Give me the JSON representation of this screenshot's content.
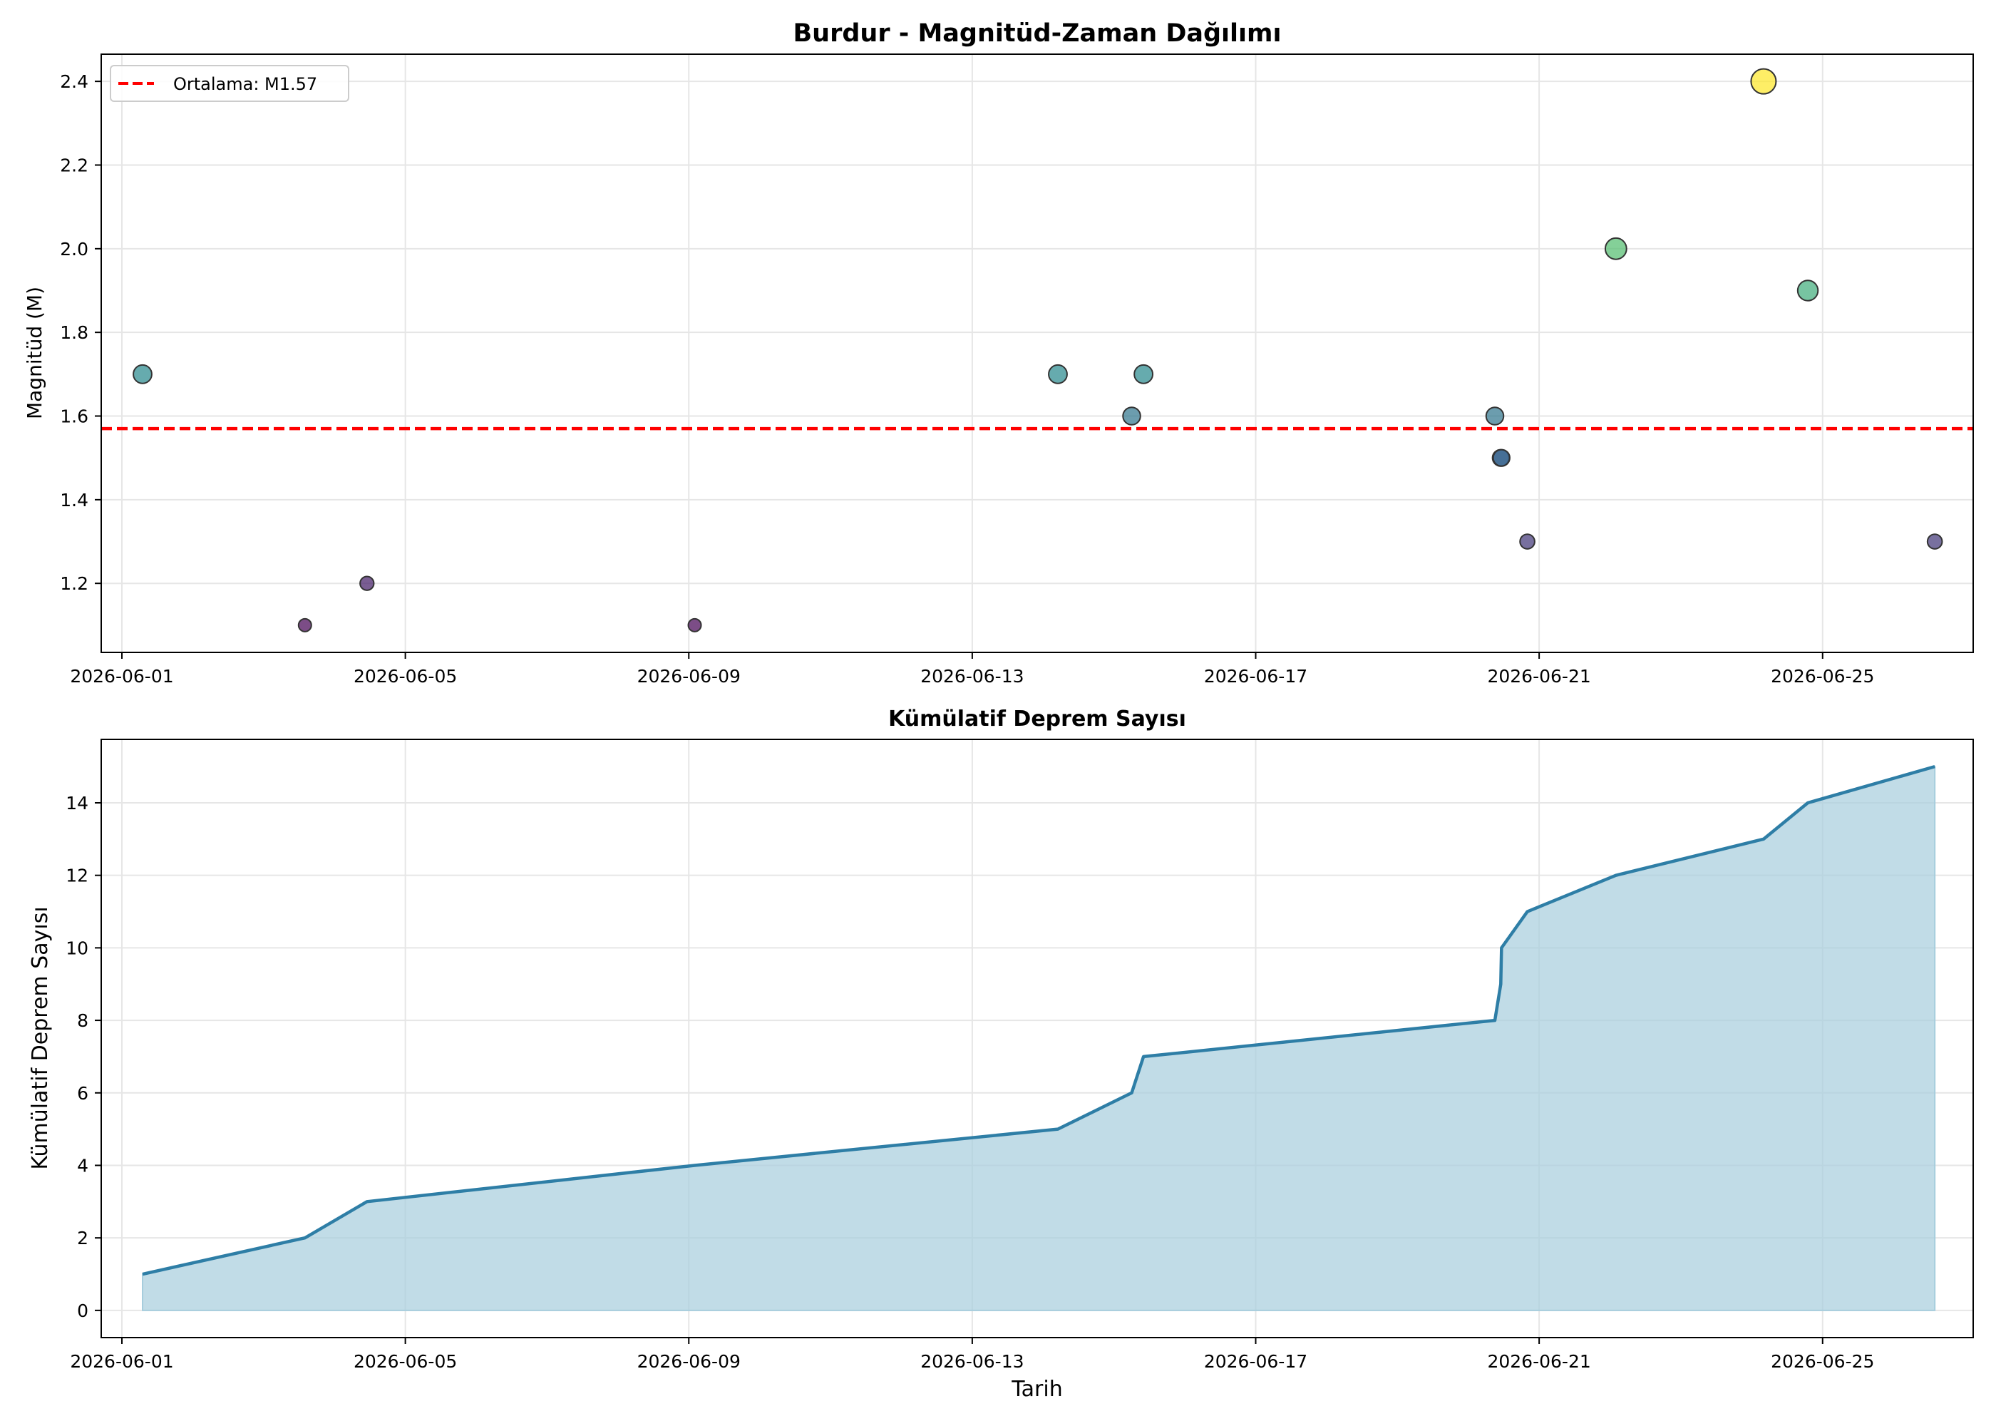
{
  "colors": {
    "mean_line": "#ff0000",
    "cumulative_line": "#2e7ea6",
    "cumulative_fill": "#a6cddd",
    "marker_edge": "#333333",
    "grid": "#e6e6e6",
    "colormap": [
      "#440154",
      "#3b528b",
      "#21918c",
      "#5ec962",
      "#fde725"
    ]
  },
  "chart_data": [
    {
      "type": "scatter",
      "title": "Burdur - Magnitüd-Zaman Dağılımı",
      "xlabel": "",
      "ylabel": "Magnitüd (M)",
      "x_range": [
        "2026-05-31T17:00",
        "2026-06-27T03:00"
      ],
      "ylim": [
        1.035,
        2.465
      ],
      "x_ticks": [
        "2026-06-01",
        "2026-06-05",
        "2026-06-09",
        "2026-06-13",
        "2026-06-17",
        "2026-06-21",
        "2026-06-25"
      ],
      "y_ticks": [
        1.2,
        1.4,
        1.6,
        1.8,
        2.0,
        2.2,
        2.4
      ],
      "y_tick_labels": [
        "1.2",
        "1.4",
        "1.6",
        "1.8",
        "2.0",
        "2.2",
        "2.4"
      ],
      "grid": true,
      "color_range": [
        1.1,
        2.4
      ],
      "points": [
        {
          "t": "2026-06-01T07:00",
          "m": 1.7
        },
        {
          "t": "2026-06-03T14:00",
          "m": 1.1
        },
        {
          "t": "2026-06-04T11:00",
          "m": 1.2
        },
        {
          "t": "2026-06-09T02:00",
          "m": 1.1
        },
        {
          "t": "2026-06-14T05:00",
          "m": 1.7
        },
        {
          "t": "2026-06-15T06:00",
          "m": 1.6
        },
        {
          "t": "2026-06-15T10:00",
          "m": 1.7
        },
        {
          "t": "2026-06-20T09:00",
          "m": 1.6
        },
        {
          "t": "2026-06-20T11:00",
          "m": 1.5
        },
        {
          "t": "2026-06-20T11:15",
          "m": 1.5
        },
        {
          "t": "2026-06-20T20:00",
          "m": 1.3
        },
        {
          "t": "2026-06-22T02:00",
          "m": 2.0
        },
        {
          "t": "2026-06-24T04:00",
          "m": 2.4
        },
        {
          "t": "2026-06-24T19:00",
          "m": 1.9
        },
        {
          "t": "2026-06-26T14:00",
          "m": 1.3
        }
      ],
      "mean": {
        "value": 1.57,
        "label": "Ortalama: M1.57"
      },
      "legend_position": "upper-left"
    },
    {
      "type": "area",
      "title": "Kümülatif Deprem Sayısı",
      "xlabel": "Tarih",
      "ylabel": "Kümülatif Deprem Sayısı",
      "x_range": [
        "2026-05-31T17:00",
        "2026-06-27T03:00"
      ],
      "ylim": [
        -0.75,
        15.75
      ],
      "x_ticks": [
        "2026-06-01",
        "2026-06-05",
        "2026-06-09",
        "2026-06-13",
        "2026-06-17",
        "2026-06-21",
        "2026-06-25"
      ],
      "y_ticks": [
        0,
        2,
        4,
        6,
        8,
        10,
        12,
        14
      ],
      "y_tick_labels": [
        "0",
        "2",
        "4",
        "6",
        "8",
        "10",
        "12",
        "14"
      ],
      "grid": true,
      "points": [
        {
          "t": "2026-06-01T07:00",
          "count": 1
        },
        {
          "t": "2026-06-03T14:00",
          "count": 2
        },
        {
          "t": "2026-06-04T11:00",
          "count": 3
        },
        {
          "t": "2026-06-09T02:00",
          "count": 4
        },
        {
          "t": "2026-06-14T05:00",
          "count": 5
        },
        {
          "t": "2026-06-15T06:00",
          "count": 6
        },
        {
          "t": "2026-06-15T10:00",
          "count": 7
        },
        {
          "t": "2026-06-20T09:00",
          "count": 8
        },
        {
          "t": "2026-06-20T11:00",
          "count": 9
        },
        {
          "t": "2026-06-20T11:15",
          "count": 10
        },
        {
          "t": "2026-06-20T20:00",
          "count": 11
        },
        {
          "t": "2026-06-22T02:00",
          "count": 12
        },
        {
          "t": "2026-06-24T04:00",
          "count": 13
        },
        {
          "t": "2026-06-24T19:00",
          "count": 14
        },
        {
          "t": "2026-06-26T14:00",
          "count": 15
        }
      ]
    }
  ]
}
